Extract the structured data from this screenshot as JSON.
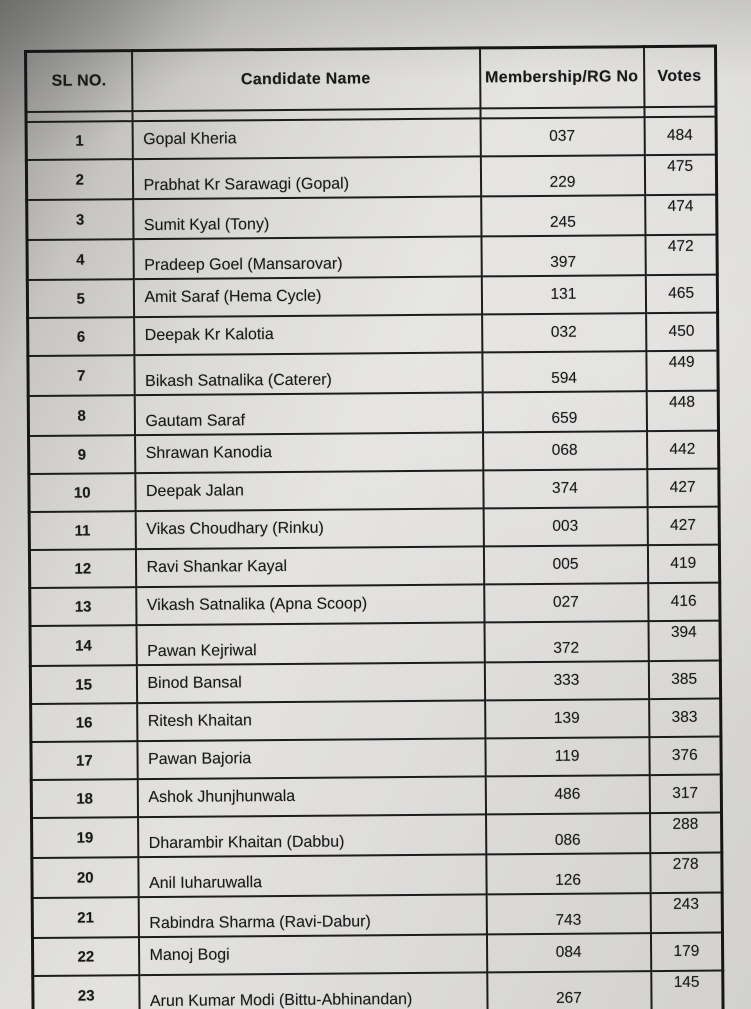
{
  "table": {
    "headers": [
      "SL NO.",
      "Candidate Name",
      "Membership/RG No",
      "Votes"
    ],
    "rows": [
      {
        "sl": "1",
        "name": "Gopal Kheria",
        "membership": "037",
        "votes": "484"
      },
      {
        "sl": "2",
        "name": "Prabhat Kr Sarawagi (Gopal)",
        "membership": "229",
        "votes": "475"
      },
      {
        "sl": "3",
        "name": "Sumit Kyal (Tony)",
        "membership": "245",
        "votes": "474"
      },
      {
        "sl": "4",
        "name": "Pradeep Goel (Mansarovar)",
        "membership": "397",
        "votes": "472"
      },
      {
        "sl": "5",
        "name": "Amit Saraf (Hema Cycle)",
        "membership": "131",
        "votes": "465"
      },
      {
        "sl": "6",
        "name": "Deepak Kr Kalotia",
        "membership": "032",
        "votes": "450"
      },
      {
        "sl": "7",
        "name": "Bikash Satnalika (Caterer)",
        "membership": "594",
        "votes": "449"
      },
      {
        "sl": "8",
        "name": "Gautam Saraf",
        "membership": "659",
        "votes": "448"
      },
      {
        "sl": "9",
        "name": "Shrawan Kanodia",
        "membership": "068",
        "votes": "442"
      },
      {
        "sl": "10",
        "name": "Deepak Jalan",
        "membership": "374",
        "votes": "427"
      },
      {
        "sl": "11",
        "name": "Vikas Choudhary (Rinku)",
        "membership": "003",
        "votes": "427"
      },
      {
        "sl": "12",
        "name": "Ravi Shankar Kayal",
        "membership": "005",
        "votes": "419"
      },
      {
        "sl": "13",
        "name": "Vikash Satnalika (Apna Scoop)",
        "membership": "027",
        "votes": "416"
      },
      {
        "sl": "14",
        "name": "Pawan Kejriwal",
        "membership": "372",
        "votes": "394"
      },
      {
        "sl": "15",
        "name": "Binod Bansal",
        "membership": "333",
        "votes": "385"
      },
      {
        "sl": "16",
        "name": "Ritesh Khaitan",
        "membership": "139",
        "votes": "383"
      },
      {
        "sl": "17",
        "name": "Pawan Bajoria",
        "membership": "119",
        "votes": "376"
      },
      {
        "sl": "18",
        "name": "Ashok Jhunjhunwala",
        "membership": "486",
        "votes": "317"
      },
      {
        "sl": "19",
        "name": "Dharambir Khaitan (Dabbu)",
        "membership": "086",
        "votes": "288"
      },
      {
        "sl": "20",
        "name": "Anil Iuharuwalla",
        "membership": "126",
        "votes": "278"
      },
      {
        "sl": "21",
        "name": "Rabindra Sharma (Ravi-Dabur)",
        "membership": "743",
        "votes": "243"
      },
      {
        "sl": "22",
        "name": "Manoj Bogi",
        "membership": "084",
        "votes": "179"
      },
      {
        "sl": "23",
        "name": "Arun Kumar Modi (Bittu-Abhinandan)",
        "membership": "267",
        "votes": "145"
      }
    ]
  }
}
